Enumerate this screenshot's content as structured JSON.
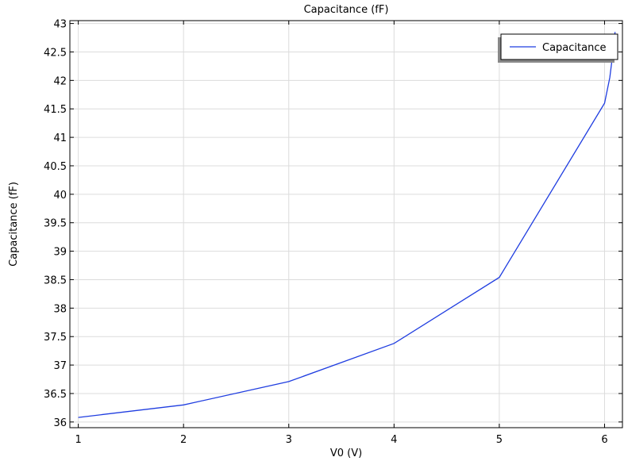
{
  "chart_data": {
    "type": "line",
    "title": "Capacitance (fF)",
    "xlabel": "V0 (V)",
    "ylabel": "Capacitance (fF)",
    "xlim": [
      0.92,
      6.17
    ],
    "ylim": [
      35.9,
      43.05
    ],
    "xticks": [
      1,
      2,
      3,
      4,
      5,
      6
    ],
    "xtick_labels": [
      "1",
      "2",
      "3",
      "4",
      "5",
      "6"
    ],
    "yticks": [
      36,
      36.5,
      37,
      37.5,
      38,
      38.5,
      39,
      39.5,
      40,
      40.5,
      41,
      41.5,
      42,
      42.5,
      43
    ],
    "ytick_labels": [
      "36",
      "36.5",
      "37",
      "37.5",
      "38",
      "38.5",
      "39",
      "39.5",
      "40",
      "40.5",
      "41",
      "41.5",
      "42",
      "42.5",
      "43"
    ],
    "grid": true,
    "legend_position": "top-right",
    "series": [
      {
        "name": "Capacitance",
        "color": "#1f3de0",
        "x": [
          1,
          2,
          3,
          4,
          5,
          6,
          6.05,
          6.08,
          6.1
        ],
        "y": [
          36.08,
          36.3,
          36.71,
          37.38,
          38.54,
          41.6,
          42.05,
          42.5,
          42.85
        ]
      }
    ]
  }
}
